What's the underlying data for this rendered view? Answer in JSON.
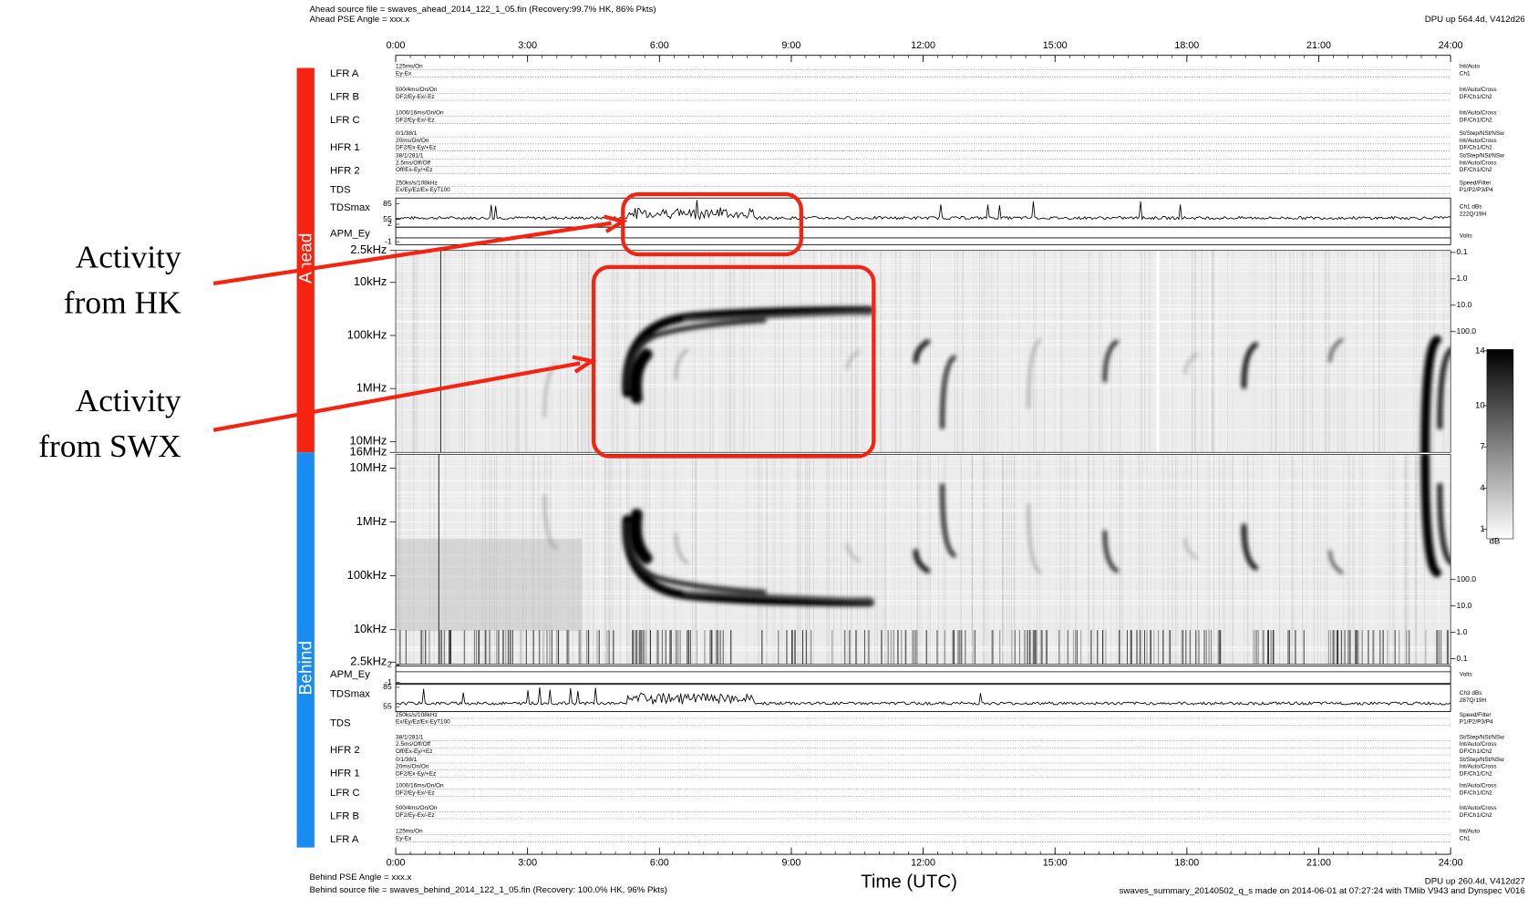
{
  "chart_data": {
    "type": "spectrogram",
    "header": {
      "ahead_source": "Ahead source file = swaves_ahead_2014_122_1_05.fin (Recovery:99.7% HK, 86% Pkts)",
      "ahead_pse": "Ahead PSE Angle = xxx.x",
      "ahead_dpu": "DPU up 564.4d, V412d26"
    },
    "footer": {
      "behind_pse": "Behind PSE Angle = xxx.x",
      "behind_source": "Behind source file = swaves_behind_2014_122_1_05.fin (Recovery: 100.0% HK, 96% Pkts)",
      "behind_dpu": "DPU up 260.4d, V412d27",
      "made": "swaves_summary_20140502_q_s made on 2014-06-01 at 07:27:24 with TMlib V943 and Dynspec V016"
    },
    "xlabel": "Time (UTC)",
    "xlim": [
      0,
      24
    ],
    "xticks": [
      {
        "value": 0,
        "label": "0:00"
      },
      {
        "value": 3,
        "label": "3:00"
      },
      {
        "value": 6,
        "label": "6:00"
      },
      {
        "value": 9,
        "label": "9:00"
      },
      {
        "value": 12,
        "label": "12:00"
      },
      {
        "value": 15,
        "label": "15:00"
      },
      {
        "value": 18,
        "label": "18:00"
      },
      {
        "value": 21,
        "label": "21:00"
      },
      {
        "value": 24,
        "label": "24:00"
      }
    ],
    "ylim": [
      2.5,
      16000
    ],
    "ahead": {
      "name": "Ahead",
      "rows": [
        {
          "label": "LFR A",
          "params": [
            "125ms/On",
            "Ey-Ex"
          ],
          "modes": [
            "Int/Auto",
            "Ch1"
          ]
        },
        {
          "label": "LFR B",
          "params": [
            "500/4ms/On/On",
            "DF2/Ey-Ex/-Ez"
          ],
          "modes": [
            "Int/Auto/Cross",
            "DF/Ch1/Ch2"
          ]
        },
        {
          "label": "LFR C",
          "params": [
            "1000/16ms/On/On",
            "DF2/Ey-Ex/-Ez"
          ],
          "modes": [
            "Int/Auto/Cross",
            "DF/Ch1/Ch2"
          ]
        },
        {
          "label": "HFR 1",
          "params": [
            "0/1/38/1",
            "20ms/On/On",
            "DF2/Ex-Ey/+Ez"
          ],
          "modes": [
            "St/Step/NSt/NSw",
            "Int/Auto/Cross",
            "DF/Ch1/Ch2"
          ]
        },
        {
          "label": "HFR 2",
          "params": [
            "38/1/281/1",
            "2.5ms/Off/Off",
            "Off/Ex-Ey/+Ez"
          ],
          "modes": [
            "St/Step/NSt/NSw",
            "Int/Auto/Cross",
            "DF/Ch1/Ch2"
          ]
        },
        {
          "label": "TDS",
          "params": [
            "250ks/s/108kHz",
            "Ex/Ey/Ez/Ex-EyT100"
          ],
          "modes": [
            "Speed/Filter",
            "P1/P2/P3/P4"
          ]
        }
      ],
      "tdsmax": {
        "label": "TDSmax",
        "yticks": [
          85,
          55
        ],
        "modes": [
          "Ch1 dBs",
          "222Q/19H"
        ]
      },
      "apm": {
        "label": "APM_Ey",
        "yticks": [
          2,
          -1
        ],
        "modes": [
          "Volts"
        ]
      },
      "yticks": [
        {
          "value": 2.5,
          "label": "2.5kHz"
        },
        {
          "value": 10,
          "label": "10kHz"
        },
        {
          "value": 100,
          "label": "100kHz"
        },
        {
          "value": 1000,
          "label": "1MHz"
        },
        {
          "value": 10000,
          "label": "10MHz"
        },
        {
          "value": 16000,
          "label": "16MHz"
        }
      ],
      "y2ticks": [
        0.1,
        {
          "value": 1,
          "label": "1.0"
        },
        {
          "value": 10,
          "label": "10.0"
        },
        {
          "value": 100,
          "label": "100.0"
        }
      ]
    },
    "behind": {
      "name": "Behind",
      "rows": [
        {
          "label": "TDS",
          "params": [
            "250ks/s/108kHz",
            "Ex/Ey/Ez/Ex-EyT100"
          ],
          "modes": [
            "Speed/Filter",
            "P1/P2/P3/P4"
          ]
        },
        {
          "label": "HFR 2",
          "params": [
            "38/1/281/1",
            "2.5ms/Off/Off",
            "Off/Ex-Ey/+Ez"
          ],
          "modes": [
            "St/Step/NSt/NSw",
            "Int/Auto/Cross",
            "DF/Ch1/Ch2"
          ]
        },
        {
          "label": "HFR 1",
          "params": [
            "0/1/38/1",
            "20ms/On/On",
            "DF2/Ex-Ey/+Ez"
          ],
          "modes": [
            "St/Step/NSt/NSw",
            "Int/Auto/Cross",
            "DF/Ch1/Ch2"
          ]
        },
        {
          "label": "LFR C",
          "params": [
            "1000/16ms/On/On",
            "DF2/Ey-Ex/-Ez"
          ],
          "modes": [
            "Int/Auto/Cross",
            "DF/Ch1/Ch2"
          ]
        },
        {
          "label": "LFR B",
          "params": [
            "500/4ms/On/On",
            "DF2/Ey-Ex/-Ez"
          ],
          "modes": [
            "Int/Auto/Cross",
            "DF/Ch1/Ch2"
          ]
        },
        {
          "label": "LFR A",
          "params": [
            "125ms/On",
            "Ey-Ex"
          ],
          "modes": [
            "Int/Auto",
            "Ch1"
          ]
        }
      ],
      "tdsmax": {
        "label": "TDSmax",
        "yticks": [
          85,
          55
        ],
        "modes": [
          "Ch3 dBs",
          "287Q/19H"
        ]
      },
      "apm": {
        "label": "APM_Ey",
        "yticks": [
          2,
          -1
        ],
        "modes": [
          "Volts"
        ]
      },
      "yticks": [
        {
          "value": 10000,
          "label": "10MHz"
        },
        {
          "value": 1000,
          "label": "1MHz"
        },
        {
          "value": 100,
          "label": "100kHz"
        },
        {
          "value": 10,
          "label": "10kHz"
        },
        {
          "value": 2.5,
          "label": "2.5kHz"
        }
      ],
      "y2ticks": [
        {
          "value": 100,
          "label": "100.0"
        },
        {
          "value": 10,
          "label": "10.0"
        },
        {
          "value": 1,
          "label": "1.0"
        },
        0.1
      ]
    },
    "colorbar": {
      "clim": [
        0.3,
        14.1
      ],
      "ticks": [
        14,
        10,
        7,
        4,
        1
      ],
      "label": "dB"
    },
    "annotations": [
      {
        "lines": [
          "Activity",
          "from HK"
        ]
      },
      {
        "lines": [
          "Activity",
          "from SWX"
        ]
      }
    ]
  }
}
